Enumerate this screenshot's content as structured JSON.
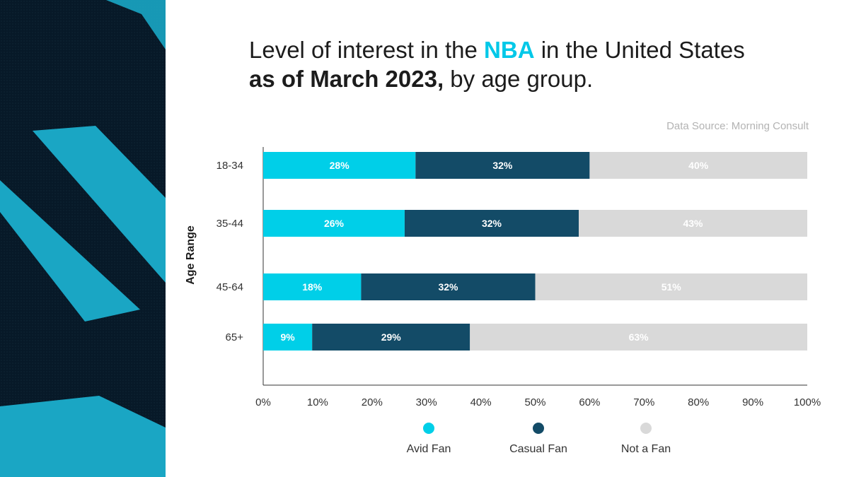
{
  "title": {
    "part1": "Level of interest in the ",
    "highlight": "NBA",
    "part2": " in the United States",
    "bold": "as of March 2023,",
    "part3": " by age group."
  },
  "source": "Data Source: Morning Consult",
  "colors": {
    "avid": "#00cfe8",
    "casual": "#134b67",
    "not": "#d9d9d9",
    "art_dark": "#04121f",
    "art_accent": "#1aa6c4"
  },
  "chart_data": {
    "type": "bar",
    "orientation": "horizontal",
    "stacked": true,
    "title": "Level of interest in the NBA in the United States as of March 2023, by age group.",
    "ylabel": "Age Range",
    "xlabel": "",
    "xlim": [
      0,
      100
    ],
    "x_ticks": [
      "0%",
      "10%",
      "20%",
      "30%",
      "40%",
      "50%",
      "60%",
      "70%",
      "80%",
      "90%",
      "100%"
    ],
    "categories": [
      "18-34",
      "35-44",
      "45-64",
      "65+"
    ],
    "series": [
      {
        "name": "Avid Fan",
        "values": [
          28,
          26,
          18,
          9
        ],
        "labels": [
          "28%",
          "26%",
          "18%",
          "9%"
        ]
      },
      {
        "name": "Casual Fan",
        "values": [
          32,
          32,
          32,
          29
        ],
        "labels": [
          "32%",
          "32%",
          "32%",
          "29%"
        ]
      },
      {
        "name": "Not a Fan",
        "values": [
          40,
          43,
          51,
          63
        ],
        "labels": [
          "40%",
          "43%",
          "51%",
          "63%"
        ]
      }
    ],
    "legend_position": "bottom",
    "grid": false
  }
}
